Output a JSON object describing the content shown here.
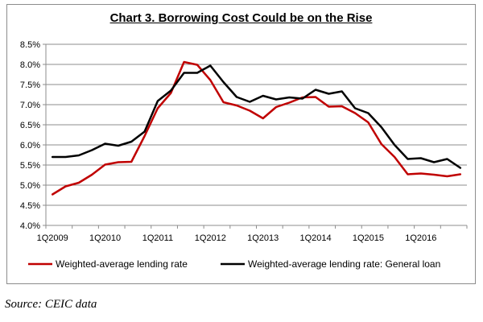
{
  "source_note": "Source: CEIC data",
  "chart_data": {
    "type": "line",
    "title": "Chart 3. Borrowing Cost Could  be on the Rise",
    "xlabel": "",
    "ylabel": "",
    "ylim": [
      4.0,
      8.5
    ],
    "y_ticks": [
      "4.0%",
      "4.5%",
      "5.0%",
      "5.5%",
      "6.0%",
      "6.5%",
      "7.0%",
      "7.5%",
      "8.0%",
      "8.5%"
    ],
    "y_tick_values": [
      4.0,
      4.5,
      5.0,
      5.5,
      6.0,
      6.5,
      7.0,
      7.5,
      8.0,
      8.5
    ],
    "x_tick_labels": [
      "1Q2009",
      "1Q2010",
      "1Q2011",
      "1Q2012",
      "1Q2013",
      "1Q2014",
      "1Q2015",
      "1Q2016"
    ],
    "x_tick_index": [
      0,
      4,
      8,
      12,
      16,
      20,
      24,
      28
    ],
    "x_count": 32,
    "grid": "horizontal",
    "legend_position": "bottom",
    "series": [
      {
        "name": "Weighted-average lending rate",
        "color": "#c00000",
        "values": [
          4.77,
          4.97,
          5.06,
          5.26,
          5.51,
          5.57,
          5.58,
          6.22,
          6.91,
          7.29,
          8.06,
          7.99,
          7.61,
          7.06,
          6.98,
          6.85,
          6.66,
          6.94,
          7.05,
          7.18,
          7.19,
          6.95,
          6.96,
          6.79,
          6.56,
          6.02,
          5.7,
          5.27,
          5.29,
          5.26,
          5.22,
          5.27
        ]
      },
      {
        "name": "Weighted-average lending rate: General loan",
        "color": "#000000",
        "values": [
          5.7,
          5.7,
          5.74,
          5.87,
          6.03,
          5.98,
          6.08,
          6.33,
          7.09,
          7.35,
          7.79,
          7.79,
          7.97,
          7.56,
          7.19,
          7.07,
          7.22,
          7.13,
          7.18,
          7.15,
          7.37,
          7.27,
          7.33,
          6.91,
          6.79,
          6.44,
          6.0,
          5.65,
          5.67,
          5.57,
          5.65,
          5.43
        ]
      }
    ]
  }
}
